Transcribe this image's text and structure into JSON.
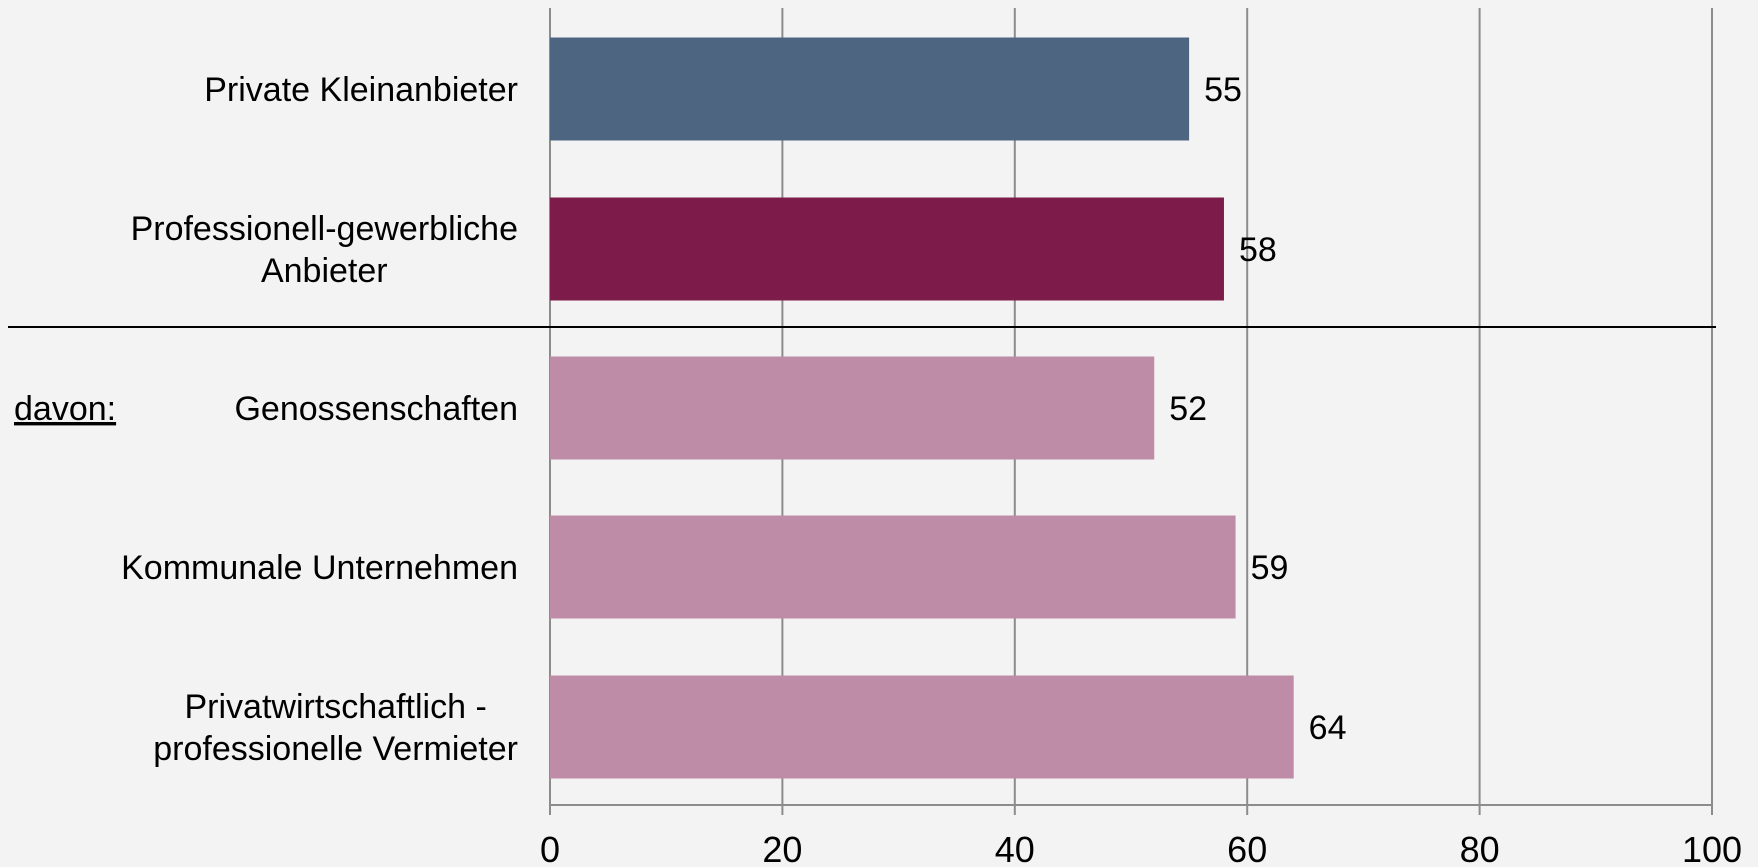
{
  "chart_data": {
    "type": "bar",
    "orientation": "horizontal",
    "title": "",
    "xlabel": "",
    "ylabel": "",
    "xlim": [
      0,
      100
    ],
    "xticks": [
      0,
      20,
      40,
      60,
      80,
      100
    ],
    "grid": true,
    "group_prefix": "davon:",
    "categories": [
      {
        "lines": [
          "Private Kleinanbieter"
        ],
        "value": 55,
        "color": "#4e6582"
      },
      {
        "lines": [
          "Professionell-gewerbliche",
          "Anbieter"
        ],
        "value": 58,
        "color": "#7d1c4a"
      },
      {
        "lines": [
          "Genossenschaften"
        ],
        "value": 52,
        "color": "#bf8ca7"
      },
      {
        "lines": [
          "Kommunale Unternehmen"
        ],
        "value": 59,
        "color": "#bf8ca7"
      },
      {
        "lines": [
          "Privatwirtschaftlich -",
          "professionelle Vermieter"
        ],
        "value": 64,
        "color": "#bf8ca7"
      }
    ]
  }
}
